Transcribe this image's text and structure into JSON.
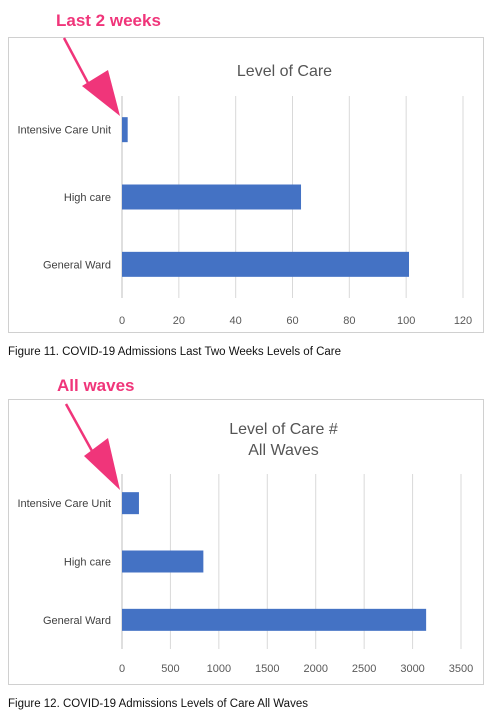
{
  "annotations": {
    "top_label": "Last 2 weeks",
    "bottom_label": "All waves",
    "color": "#f0357a"
  },
  "captions": {
    "figure11": "Figure 11. COVID-19 Admissions Last Two Weeks Levels of Care",
    "figure12": "Figure 12. COVID-19 Admissions Levels of Care All Waves"
  },
  "chart_data": [
    {
      "type": "bar",
      "orientation": "horizontal",
      "title": "Level of Care",
      "categories": [
        "Intensive Care Unit",
        "High care",
        "General Ward"
      ],
      "values": [
        2,
        63,
        101
      ],
      "xlim": [
        0,
        120
      ],
      "xticks": [
        0,
        20,
        40,
        60,
        80,
        100,
        120
      ],
      "grid": true,
      "bar_color": "#4472c4"
    },
    {
      "type": "bar",
      "orientation": "horizontal",
      "title": "Level of Care #\nAll Waves",
      "categories": [
        "Intensive Care Unit",
        "High care",
        "General Ward"
      ],
      "values": [
        175,
        840,
        3140
      ],
      "xlim": [
        0,
        3500
      ],
      "xticks": [
        0,
        500,
        1000,
        1500,
        2000,
        2500,
        3000,
        3500
      ],
      "grid": true,
      "bar_color": "#4472c4"
    }
  ]
}
